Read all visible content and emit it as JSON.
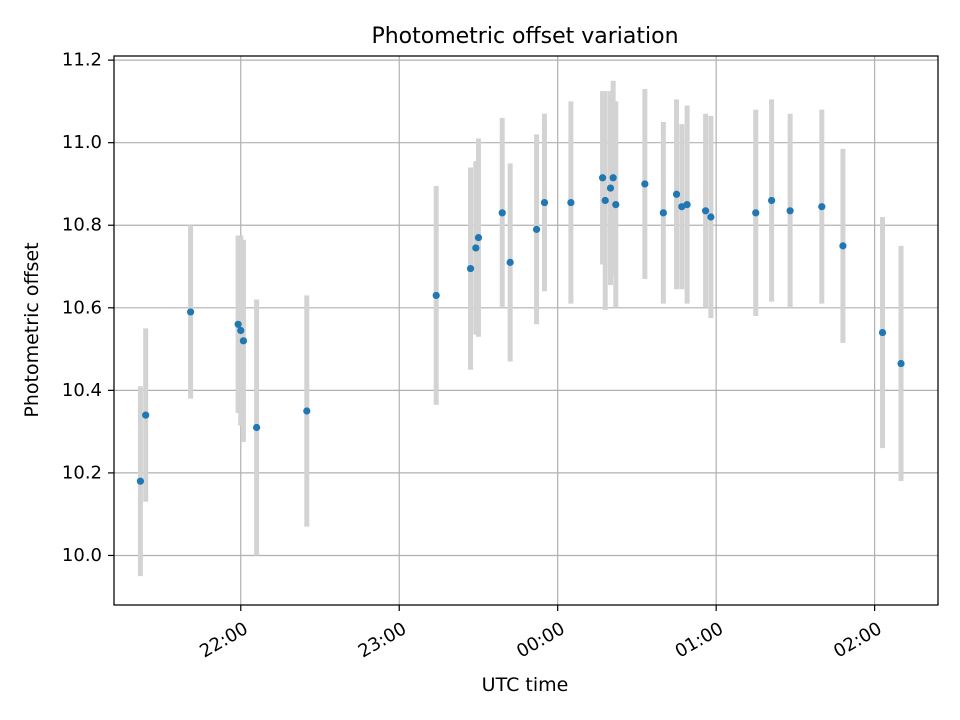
{
  "colors": {
    "point": "#1f77b4",
    "errorbar": "#d3d3d3",
    "grid": "#b0b0b0",
    "axes": "#000000"
  },
  "chart_data": {
    "type": "scatter",
    "title": "Photometric offset variation",
    "xlabel": "UTC time",
    "ylabel": "Photometric offset",
    "grid": true,
    "x_units": "UTC time (HH:MM)",
    "xlim": [
      "21:12",
      "02:24"
    ],
    "ylim": [
      9.88,
      11.21
    ],
    "xticks": [
      "22:00",
      "23:00",
      "00:00",
      "01:00",
      "02:00"
    ],
    "yticks": [
      "10.0",
      "10.2",
      "10.4",
      "10.6",
      "10.8",
      "11.0",
      "11.2"
    ],
    "series": [
      {
        "marker": "point",
        "errorbars": "symmetric vertical",
        "points": [
          {
            "x": "21:22",
            "y": 10.18,
            "err": 0.23
          },
          {
            "x": "21:24",
            "y": 10.34,
            "err": 0.21
          },
          {
            "x": "21:41",
            "y": 10.59,
            "err": 0.21
          },
          {
            "x": "21:59",
            "y": 10.56,
            "err": 0.215
          },
          {
            "x": "22:00",
            "y": 10.545,
            "err": 0.23
          },
          {
            "x": "22:01",
            "y": 10.52,
            "err": 0.245
          },
          {
            "x": "22:06",
            "y": 10.31,
            "err": 0.31
          },
          {
            "x": "22:25",
            "y": 10.35,
            "err": 0.28
          },
          {
            "x": "23:14",
            "y": 10.63,
            "err": 0.265
          },
          {
            "x": "23:27",
            "y": 10.695,
            "err": 0.245
          },
          {
            "x": "23:29",
            "y": 10.745,
            "err": 0.21
          },
          {
            "x": "23:30",
            "y": 10.77,
            "err": 0.24
          },
          {
            "x": "23:39",
            "y": 10.83,
            "err": 0.23
          },
          {
            "x": "23:42",
            "y": 10.71,
            "err": 0.24
          },
          {
            "x": "23:52",
            "y": 10.79,
            "err": 0.23
          },
          {
            "x": "23:55",
            "y": 10.855,
            "err": 0.215
          },
          {
            "x": "00:05",
            "y": 10.855,
            "err": 0.245
          },
          {
            "x": "00:17",
            "y": 10.915,
            "err": 0.21
          },
          {
            "x": "00:18",
            "y": 10.86,
            "err": 0.265
          },
          {
            "x": "00:20",
            "y": 10.89,
            "err": 0.235
          },
          {
            "x": "00:21",
            "y": 10.915,
            "err": 0.235
          },
          {
            "x": "00:22",
            "y": 10.85,
            "err": 0.25
          },
          {
            "x": "00:33",
            "y": 10.9,
            "err": 0.23
          },
          {
            "x": "00:40",
            "y": 10.83,
            "err": 0.22
          },
          {
            "x": "00:45",
            "y": 10.875,
            "err": 0.23
          },
          {
            "x": "00:47",
            "y": 10.845,
            "err": 0.2
          },
          {
            "x": "00:49",
            "y": 10.85,
            "err": 0.24
          },
          {
            "x": "00:56",
            "y": 10.835,
            "err": 0.235
          },
          {
            "x": "00:58",
            "y": 10.82,
            "err": 0.245
          },
          {
            "x": "01:15",
            "y": 10.83,
            "err": 0.25
          },
          {
            "x": "01:21",
            "y": 10.86,
            "err": 0.245
          },
          {
            "x": "01:28",
            "y": 10.835,
            "err": 0.235
          },
          {
            "x": "01:40",
            "y": 10.845,
            "err": 0.235
          },
          {
            "x": "01:48",
            "y": 10.75,
            "err": 0.235
          },
          {
            "x": "02:03",
            "y": 10.54,
            "err": 0.28
          },
          {
            "x": "02:10",
            "y": 10.465,
            "err": 0.285
          }
        ]
      }
    ]
  }
}
